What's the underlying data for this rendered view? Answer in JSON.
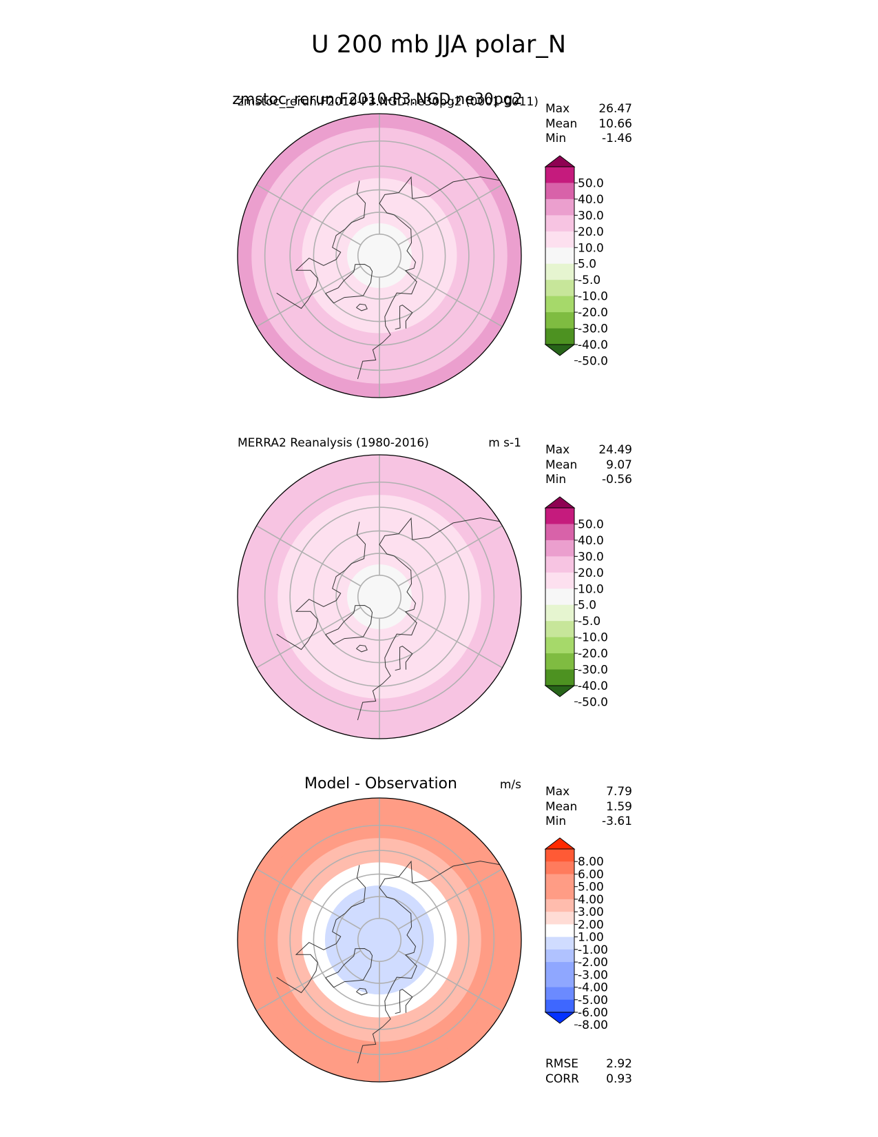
{
  "figure": {
    "title": "U 200 mb JJA polar_N"
  },
  "colors": {
    "abs_scale": [
      "#276419",
      "#4d9221",
      "#7fbc41",
      "#a6d96a",
      "#c7e69a",
      "#e6f5d0",
      "#f7f7f7",
      "#fde0ef",
      "#f7c4e2",
      "#eb9fce",
      "#d862a9",
      "#c51b7d",
      "#8e0152"
    ],
    "diff_scale": [
      "#0432ff",
      "#3e67ff",
      "#6b8aff",
      "#8fa7ff",
      "#b0c2ff",
      "#d0dcff",
      "#ffffff",
      "#ffdcd5",
      "#ffbcad",
      "#ff9c85",
      "#ff7b5d",
      "#ff5a35",
      "#ff2a00"
    ],
    "grid": "#b0b0b0",
    "coast": "#333333"
  },
  "chart_data": [
    {
      "type": "heatmap",
      "projection": "north-polar-stereographic",
      "title_left": "zmstoc_rerun.F2010-P3.NGD.ne30pg2 (0001-0011)",
      "title_center": "zmstoc_rerun.F2010-P3.NGD.ne30pg2",
      "title_right": "",
      "stats": {
        "labels": [
          "Max",
          "Mean",
          "Min"
        ],
        "values": [
          "26.47",
          "10.66",
          "-1.46"
        ]
      },
      "colorbar_ticks": [
        "50.0",
        "40.0",
        "30.0",
        "20.0",
        "10.0",
        "5.0",
        "-5.0",
        "-10.0",
        "-20.0",
        "-30.0",
        "-40.0",
        "-50.0"
      ],
      "field_rings": [
        {
          "lat": 90,
          "value": 2
        },
        {
          "lat": 80,
          "value": 3
        },
        {
          "lat": 70,
          "value": 7
        },
        {
          "lat": 60,
          "value": 9
        },
        {
          "lat": 50,
          "value": 14
        },
        {
          "lat": 40,
          "value": 18
        },
        {
          "lat": 30,
          "value": 20
        }
      ]
    },
    {
      "type": "heatmap",
      "projection": "north-polar-stereographic",
      "title_left": "MERRA2 Reanalysis (1980-2016)",
      "title_center": "",
      "title_right": "m s-1",
      "stats": {
        "labels": [
          "Max",
          "Mean",
          "Min"
        ],
        "values": [
          "24.49",
          "9.07",
          "-0.56"
        ]
      },
      "colorbar_ticks": [
        "50.0",
        "40.0",
        "30.0",
        "20.0",
        "10.0",
        "5.0",
        "-5.0",
        "-10.0",
        "-20.0",
        "-30.0",
        "-40.0",
        "-50.0"
      ],
      "field_rings": [
        {
          "lat": 90,
          "value": 2
        },
        {
          "lat": 80,
          "value": 3
        },
        {
          "lat": 70,
          "value": 6
        },
        {
          "lat": 60,
          "value": 7
        },
        {
          "lat": 50,
          "value": 9
        },
        {
          "lat": 40,
          "value": 13
        },
        {
          "lat": 30,
          "value": 17
        }
      ]
    },
    {
      "type": "heatmap",
      "projection": "north-polar-stereographic",
      "title_left": "",
      "title_center": "Model - Observation",
      "title_right": "m/s",
      "stats": {
        "labels": [
          "Max",
          "Mean",
          "Min"
        ],
        "values": [
          "7.79",
          "1.59",
          "-3.61"
        ]
      },
      "colorbar_ticks": [
        "8.00",
        "6.00",
        "5.00",
        "4.00",
        "3.00",
        "2.00",
        "1.00",
        "-1.00",
        "-2.00",
        "-3.00",
        "-4.00",
        "-5.00",
        "-6.00",
        "-8.00"
      ],
      "extra_stats": {
        "labels": [
          "RMSE",
          "CORR"
        ],
        "values": [
          "2.92",
          "0.93"
        ]
      },
      "field_rings": [
        {
          "lat": 90,
          "value": -1.5
        },
        {
          "lat": 80,
          "value": -2
        },
        {
          "lat": 70,
          "value": -1.5
        },
        {
          "lat": 60,
          "value": 0
        },
        {
          "lat": 50,
          "value": 2.5
        },
        {
          "lat": 40,
          "value": 4
        },
        {
          "lat": 30,
          "value": 3
        }
      ]
    }
  ]
}
